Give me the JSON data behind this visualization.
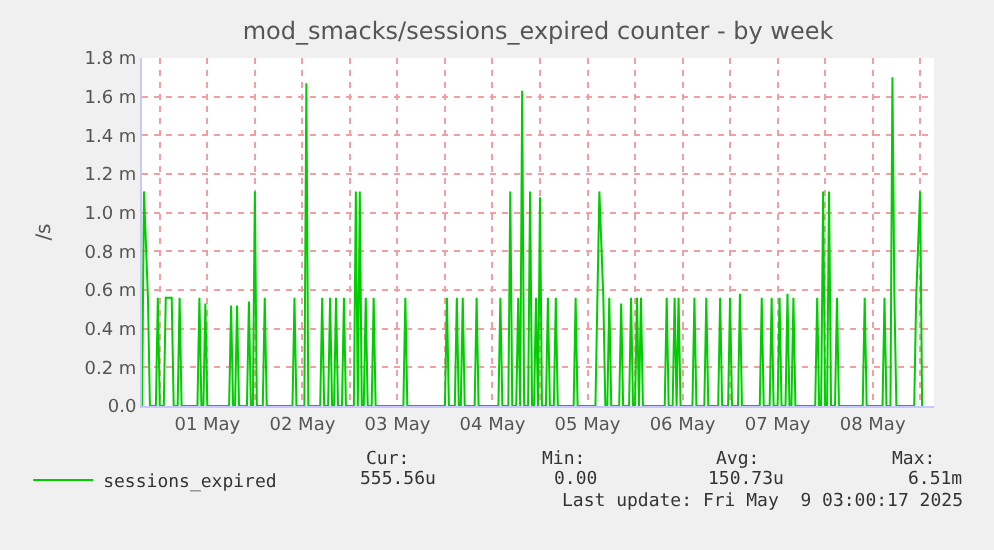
{
  "chart_data": {
    "type": "line",
    "title": "mod_smacks/sessions_expired counter - by week",
    "ylabel": "/s",
    "xlim": [
      "2025-04-30T19:30",
      "2025-05-09T03:30"
    ],
    "xticks": [
      {
        "value": "2025-05-01T00:00",
        "label": null
      },
      {
        "value": "2025-05-01T12:00",
        "label": "01 May"
      },
      {
        "value": "2025-05-02T00:00",
        "label": null
      },
      {
        "value": "2025-05-02T12:00",
        "label": "02 May"
      },
      {
        "value": "2025-05-03T00:00",
        "label": null
      },
      {
        "value": "2025-05-03T12:00",
        "label": "03 May"
      },
      {
        "value": "2025-05-04T00:00",
        "label": null
      },
      {
        "value": "2025-05-04T12:00",
        "label": "04 May"
      },
      {
        "value": "2025-05-05T00:00",
        "label": null
      },
      {
        "value": "2025-05-05T12:00",
        "label": "05 May"
      },
      {
        "value": "2025-05-06T00:00",
        "label": null
      },
      {
        "value": "2025-05-06T12:00",
        "label": "06 May"
      },
      {
        "value": "2025-05-07T00:00",
        "label": null
      },
      {
        "value": "2025-05-07T12:00",
        "label": "07 May"
      },
      {
        "value": "2025-05-08T00:00",
        "label": null
      },
      {
        "value": "2025-05-08T12:00",
        "label": "08 May"
      },
      {
        "value": "2025-05-09T00:00",
        "label": null
      }
    ],
    "ylim": [
      0,
      1.8
    ],
    "yticks": [
      {
        "value": 0,
        "label": "0.0"
      },
      {
        "value": 0.2,
        "label": "0.2 m"
      },
      {
        "value": 0.4,
        "label": "0.4 m"
      },
      {
        "value": 0.6,
        "label": "0.6 m"
      },
      {
        "value": 0.8,
        "label": "0.8 m"
      },
      {
        "value": 1.0,
        "label": "1.0 m"
      },
      {
        "value": 1.2,
        "label": "1.2 m"
      },
      {
        "value": 1.4,
        "label": "1.4 m"
      },
      {
        "value": 1.6,
        "label": "1.6 m"
      },
      {
        "value": 1.8,
        "label": "1.8 m"
      }
    ],
    "grid": true,
    "legend": "bottom",
    "marker": "none",
    "line_style": "solid",
    "annotations": [
      "Cur:",
      "555.56u",
      "Min:",
      "0.00",
      "Avg:",
      "150.73u",
      "Max:",
      "6.51m",
      "Last update: Fri May  9 03:00:17 2025"
    ],
    "series": [
      {
        "name": "sessions_expired",
        "color": "#00cc00",
        "x": [
          "2025-04-30T19:30",
          "2025-04-30T20:00",
          "2025-04-30T21:00",
          "2025-04-30T21:30",
          "2025-04-30T23:00",
          "2025-04-30T23:30",
          "2025-05-01T00:00",
          "2025-05-01T01:00",
          "2025-05-01T01:30",
          "2025-05-01T03:00",
          "2025-05-01T03:30",
          "2025-05-01T04:30",
          "2025-05-01T05:00",
          "2025-05-01T05:30",
          "2025-05-01T09:30",
          "2025-05-01T10:00",
          "2025-05-01T10:30",
          "2025-05-01T11:00",
          "2025-05-01T11:30",
          "2025-05-01T12:00",
          "2025-05-01T17:30",
          "2025-05-01T18:00",
          "2025-05-01T18:30",
          "2025-05-01T19:00",
          "2025-05-01T19:30",
          "2025-05-01T20:00",
          "2025-05-01T22:00",
          "2025-05-01T22:30",
          "2025-05-01T23:00",
          "2025-05-01T23:30",
          "2025-05-02T00:00",
          "2025-05-02T00:30",
          "2025-05-02T02:00",
          "2025-05-02T02:30",
          "2025-05-02T03:00",
          "2025-05-02T09:30",
          "2025-05-02T10:00",
          "2025-05-02T10:30",
          "2025-05-02T12:30",
          "2025-05-02T13:00",
          "2025-05-02T13:30",
          "2025-05-02T16:30",
          "2025-05-02T17:00",
          "2025-05-02T17:30",
          "2025-05-02T18:30",
          "2025-05-02T19:00",
          "2025-05-02T19:30",
          "2025-05-02T20:00",
          "2025-05-02T20:30",
          "2025-05-02T21:00",
          "2025-05-02T22:00",
          "2025-05-02T22:30",
          "2025-05-02T23:00",
          "2025-05-03T01:00",
          "2025-05-03T01:30",
          "2025-05-03T02:00",
          "2025-05-03T02:30",
          "2025-05-03T03:00",
          "2025-05-03T03:30",
          "2025-05-03T04:00",
          "2025-05-03T04:30",
          "2025-05-03T05:30",
          "2025-05-03T06:00",
          "2025-05-03T06:30",
          "2025-05-03T13:30",
          "2025-05-03T14:00",
          "2025-05-03T14:30",
          "2025-05-04T00:00",
          "2025-05-04T00:30",
          "2025-05-04T01:00",
          "2025-05-04T02:30",
          "2025-05-04T03:00",
          "2025-05-04T03:30",
          "2025-05-04T04:00",
          "2025-05-04T04:30",
          "2025-05-04T05:00",
          "2025-05-04T07:30",
          "2025-05-04T08:00",
          "2025-05-04T08:30",
          "2025-05-04T13:30",
          "2025-05-04T14:00",
          "2025-05-04T14:30",
          "2025-05-04T16:00",
          "2025-05-04T16:30",
          "2025-05-04T17:00",
          "2025-05-04T18:00",
          "2025-05-04T18:30",
          "2025-05-04T19:00",
          "2025-05-04T19:30",
          "2025-05-04T20:00",
          "2025-05-04T21:00",
          "2025-05-04T21:30",
          "2025-05-04T22:00",
          "2025-05-04T22:30",
          "2025-05-04T23:00",
          "2025-05-04T23:30",
          "2025-05-05T00:00",
          "2025-05-05T00:30",
          "2025-05-05T01:30",
          "2025-05-05T02:00",
          "2025-05-05T02:30",
          "2025-05-05T03:30",
          "2025-05-05T04:00",
          "2025-05-05T04:30",
          "2025-05-05T08:30",
          "2025-05-05T09:00",
          "2025-05-05T09:30",
          "2025-05-05T14:00",
          "2025-05-05T14:30",
          "2025-05-05T15:00",
          "2025-05-05T16:00",
          "2025-05-05T16:30",
          "2025-05-05T17:00",
          "2025-05-05T17:30",
          "2025-05-05T18:00",
          "2025-05-05T20:00",
          "2025-05-05T20:30",
          "2025-05-05T21:00",
          "2025-05-05T22:30",
          "2025-05-05T23:00",
          "2025-05-05T23:30",
          "2025-05-06T00:00",
          "2025-05-06T00:30",
          "2025-05-06T01:00",
          "2025-05-06T01:30",
          "2025-05-06T02:00",
          "2025-05-06T07:30",
          "2025-05-06T08:00",
          "2025-05-06T08:30",
          "2025-05-06T09:30",
          "2025-05-06T10:00",
          "2025-05-06T10:30",
          "2025-05-06T11:00",
          "2025-05-06T11:30",
          "2025-05-06T14:30",
          "2025-05-06T15:00",
          "2025-05-06T15:30",
          "2025-05-06T17:30",
          "2025-05-06T18:00",
          "2025-05-06T18:30",
          "2025-05-06T21:00",
          "2025-05-06T21:30",
          "2025-05-06T22:00",
          "2025-05-06T23:30",
          "2025-05-07T00:00",
          "2025-05-07T00:30",
          "2025-05-07T02:00",
          "2025-05-07T02:30",
          "2025-05-07T03:00",
          "2025-05-07T07:30",
          "2025-05-07T08:00",
          "2025-05-07T08:30",
          "2025-05-07T10:00",
          "2025-05-07T10:30",
          "2025-05-07T11:00",
          "2025-05-07T12:00",
          "2025-05-07T12:30",
          "2025-05-07T13:00",
          "2025-05-07T14:00",
          "2025-05-07T14:30",
          "2025-05-07T15:00",
          "2025-05-07T15:30",
          "2025-05-07T16:00",
          "2025-05-07T16:30",
          "2025-05-07T21:30",
          "2025-05-07T22:00",
          "2025-05-07T22:30",
          "2025-05-07T23:00",
          "2025-05-07T23:30",
          "2025-05-08T00:00",
          "2025-05-08T00:30",
          "2025-05-08T01:00",
          "2025-05-08T01:30",
          "2025-05-08T02:30",
          "2025-05-08T03:00",
          "2025-05-08T03:30",
          "2025-05-08T09:30",
          "2025-05-08T10:00",
          "2025-05-08T10:30",
          "2025-05-08T14:30",
          "2025-05-08T15:00",
          "2025-05-08T15:30",
          "2025-05-08T16:30",
          "2025-05-08T17:00",
          "2025-05-08T17:30",
          "2025-05-08T18:00",
          "2025-05-08T22:30",
          "2025-05-08T23:00",
          "2025-05-09T00:00",
          "2025-05-09T00:30"
        ],
        "values": [
          0,
          1.11,
          0.56,
          0,
          0,
          0.56,
          0,
          0,
          0.56,
          0.56,
          0,
          0,
          0.56,
          0,
          0,
          0.56,
          0,
          0,
          0.53,
          0,
          0,
          0.52,
          0,
          0,
          0.52,
          0,
          0,
          0.54,
          0,
          0,
          1.11,
          0,
          0,
          0.56,
          0,
          0,
          0.56,
          0,
          0,
          1.67,
          0,
          0,
          0.56,
          0,
          0,
          0.56,
          0,
          0,
          0.56,
          0,
          0,
          0.56,
          0,
          0,
          1.11,
          0,
          1.11,
          0,
          0,
          0.56,
          0,
          0,
          0.56,
          0,
          0,
          0.56,
          0,
          0,
          0.56,
          0,
          0,
          0.56,
          0,
          0,
          0.56,
          0,
          0,
          0.56,
          0,
          0,
          0.56,
          0,
          0,
          1.11,
          0,
          0,
          0.56,
          0,
          1.63,
          0,
          0,
          1.11,
          0,
          0,
          0.56,
          0,
          1.08,
          0,
          0,
          0.56,
          0,
          0,
          0.56,
          0,
          0,
          0.56,
          0,
          0,
          0.56,
          1.11,
          0.56,
          0,
          0,
          0.56,
          0,
          0,
          0.53,
          0,
          0,
          0.56,
          0,
          0,
          0.56,
          0,
          0.56,
          0,
          0,
          0.56,
          0,
          0,
          0.56,
          0,
          0.56,
          0,
          0,
          0.56,
          0,
          0,
          0.56,
          0,
          0,
          0.56,
          0,
          0,
          0.56,
          0,
          0,
          0.58,
          0,
          0,
          0.56,
          0,
          0,
          0.56,
          0,
          0,
          0.56,
          0,
          0,
          0.58,
          0,
          0,
          0.56,
          0,
          0,
          0.56,
          0,
          0,
          1.11,
          0,
          0,
          1.11,
          0,
          0,
          0.56,
          0,
          0,
          0.56,
          0,
          0,
          0.56,
          0,
          0,
          1.7,
          0.56,
          0,
          0,
          0.56,
          1.11,
          0
        ]
      }
    ]
  }
}
